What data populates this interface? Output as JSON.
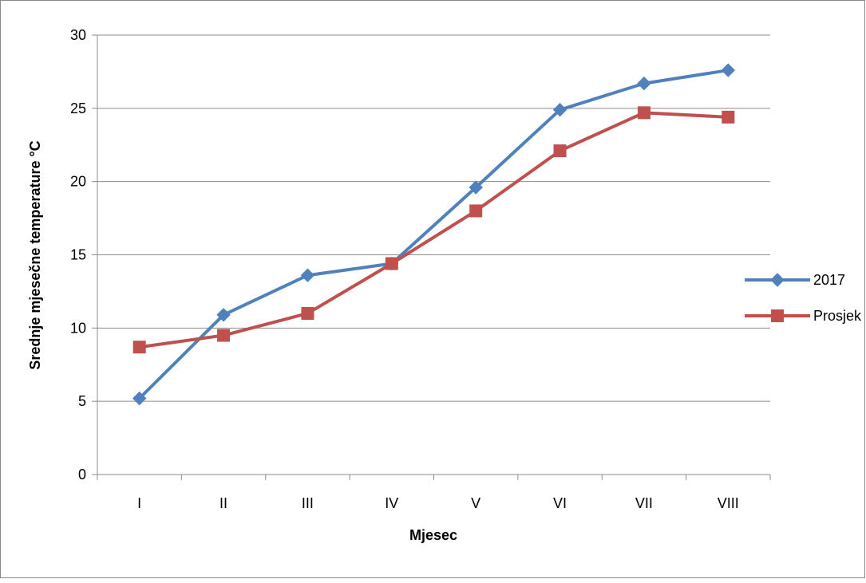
{
  "chart_data": {
    "type": "line",
    "categories": [
      "I",
      "II",
      "III",
      "IV",
      "V",
      "VI",
      "VII",
      "VIII"
    ],
    "series": [
      {
        "name": "2017",
        "values": [
          5.2,
          10.9,
          13.6,
          14.4,
          19.6,
          24.9,
          26.7,
          27.6
        ],
        "color": "#4F81BD",
        "marker": "diamond"
      },
      {
        "name": "Prosjek",
        "values": [
          8.7,
          9.5,
          11.0,
          14.4,
          18.0,
          22.1,
          24.7,
          24.4
        ],
        "color": "#C0504D",
        "marker": "square"
      }
    ],
    "xlabel": "Mjesec",
    "ylabel": "Srednje mjesečne temperature °C",
    "ylim": [
      0,
      30
    ],
    "yticks": [
      0,
      5,
      10,
      15,
      20,
      25,
      30
    ],
    "grid": true,
    "legend_position": "right"
  }
}
